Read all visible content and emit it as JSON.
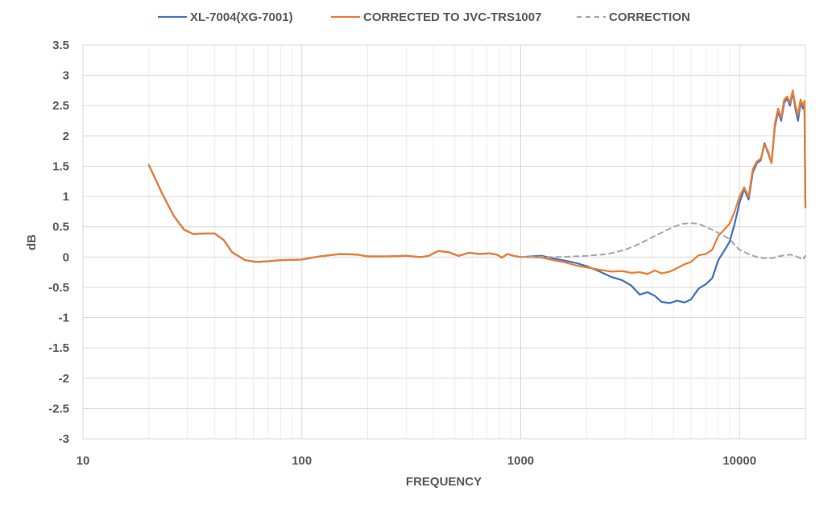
{
  "chart_data": {
    "type": "line",
    "title": "",
    "xlabel": "FREQUENCY",
    "ylabel": "dB",
    "xscale": "log",
    "xlim": [
      10,
      20000
    ],
    "ylim": [
      -3,
      3.5
    ],
    "x_ticks": [
      10,
      100,
      1000,
      10000
    ],
    "x_tick_labels": [
      "10",
      "100",
      "1000",
      "10000"
    ],
    "y_ticks": [
      3.5,
      3,
      2.5,
      2,
      1.5,
      1,
      0.5,
      0,
      -0.5,
      -1,
      -1.5,
      -2,
      -2.5,
      -3
    ],
    "y_tick_labels": [
      "3.5",
      "3",
      "2.5",
      "2",
      "1.5",
      "1",
      "0.5",
      "0",
      "-0.5",
      "-1",
      "-1.5",
      "-2",
      "-2.5",
      "-3"
    ],
    "grid": true,
    "legend_position": "top",
    "series": [
      {
        "name": "XL-7004(XG-7001)",
        "color": "#4472c4",
        "style": "solid",
        "points": [
          [
            20,
            1.52
          ],
          [
            23,
            1.05
          ],
          [
            26,
            0.68
          ],
          [
            29,
            0.45
          ],
          [
            32,
            0.38
          ],
          [
            36,
            0.39
          ],
          [
            40,
            0.39
          ],
          [
            44,
            0.28
          ],
          [
            48,
            0.08
          ],
          [
            55,
            -0.05
          ],
          [
            62,
            -0.08
          ],
          [
            70,
            -0.07
          ],
          [
            80,
            -0.05
          ],
          [
            100,
            -0.04
          ],
          [
            120,
            0.01
          ],
          [
            150,
            0.05
          ],
          [
            180,
            0.04
          ],
          [
            200,
            0.01
          ],
          [
            250,
            0.01
          ],
          [
            300,
            0.02
          ],
          [
            350,
            0.0
          ],
          [
            380,
            0.02
          ],
          [
            420,
            0.1
          ],
          [
            470,
            0.08
          ],
          [
            520,
            0.02
          ],
          [
            580,
            0.07
          ],
          [
            650,
            0.05
          ],
          [
            720,
            0.06
          ],
          [
            780,
            0.04
          ],
          [
            820,
            -0.01
          ],
          [
            870,
            0.05
          ],
          [
            930,
            0.02
          ],
          [
            1000,
            0.0
          ],
          [
            1100,
            0.01
          ],
          [
            1250,
            0.02
          ],
          [
            1400,
            -0.02
          ],
          [
            1600,
            -0.06
          ],
          [
            1800,
            -0.1
          ],
          [
            2000,
            -0.15
          ],
          [
            2300,
            -0.24
          ],
          [
            2600,
            -0.33
          ],
          [
            2900,
            -0.38
          ],
          [
            3200,
            -0.47
          ],
          [
            3500,
            -0.62
          ],
          [
            3800,
            -0.58
          ],
          [
            4100,
            -0.64
          ],
          [
            4400,
            -0.74
          ],
          [
            4800,
            -0.76
          ],
          [
            5200,
            -0.72
          ],
          [
            5600,
            -0.75
          ],
          [
            6000,
            -0.7
          ],
          [
            6500,
            -0.52
          ],
          [
            7000,
            -0.45
          ],
          [
            7500,
            -0.35
          ],
          [
            8000,
            -0.05
          ],
          [
            8500,
            0.1
          ],
          [
            9000,
            0.25
          ],
          [
            9500,
            0.55
          ],
          [
            10000,
            0.9
          ],
          [
            10500,
            1.12
          ],
          [
            11000,
            0.95
          ],
          [
            11500,
            1.4
          ],
          [
            12000,
            1.55
          ],
          [
            12500,
            1.6
          ],
          [
            13000,
            1.88
          ],
          [
            13500,
            1.72
          ],
          [
            14000,
            1.55
          ],
          [
            14500,
            2.15
          ],
          [
            15000,
            2.4
          ],
          [
            15500,
            2.25
          ],
          [
            16000,
            2.55
          ],
          [
            16500,
            2.62
          ],
          [
            17000,
            2.5
          ],
          [
            17500,
            2.72
          ],
          [
            18000,
            2.45
          ],
          [
            18500,
            2.25
          ],
          [
            19000,
            2.55
          ],
          [
            19500,
            2.45
          ],
          [
            19800,
            2.55
          ],
          [
            20000,
            0.82
          ]
        ]
      },
      {
        "name": "CORRECTED TO JVC-TRS1007",
        "color": "#ed7d31",
        "style": "solid",
        "points": [
          [
            20,
            1.52
          ],
          [
            23,
            1.05
          ],
          [
            26,
            0.68
          ],
          [
            29,
            0.45
          ],
          [
            32,
            0.38
          ],
          [
            36,
            0.39
          ],
          [
            40,
            0.39
          ],
          [
            44,
            0.28
          ],
          [
            48,
            0.08
          ],
          [
            55,
            -0.05
          ],
          [
            62,
            -0.08
          ],
          [
            70,
            -0.07
          ],
          [
            80,
            -0.05
          ],
          [
            100,
            -0.04
          ],
          [
            120,
            0.01
          ],
          [
            150,
            0.05
          ],
          [
            180,
            0.04
          ],
          [
            200,
            0.01
          ],
          [
            250,
            0.01
          ],
          [
            300,
            0.02
          ],
          [
            350,
            0.0
          ],
          [
            380,
            0.02
          ],
          [
            420,
            0.1
          ],
          [
            470,
            0.08
          ],
          [
            520,
            0.02
          ],
          [
            580,
            0.07
          ],
          [
            650,
            0.05
          ],
          [
            720,
            0.06
          ],
          [
            780,
            0.04
          ],
          [
            820,
            -0.01
          ],
          [
            870,
            0.05
          ],
          [
            930,
            0.02
          ],
          [
            1000,
            0.0
          ],
          [
            1100,
            0.0
          ],
          [
            1250,
            -0.01
          ],
          [
            1400,
            -0.05
          ],
          [
            1600,
            -0.09
          ],
          [
            1800,
            -0.14
          ],
          [
            2000,
            -0.17
          ],
          [
            2300,
            -0.21
          ],
          [
            2600,
            -0.24
          ],
          [
            2900,
            -0.23
          ],
          [
            3200,
            -0.26
          ],
          [
            3500,
            -0.25
          ],
          [
            3800,
            -0.28
          ],
          [
            4100,
            -0.22
          ],
          [
            4400,
            -0.27
          ],
          [
            4800,
            -0.24
          ],
          [
            5200,
            -0.18
          ],
          [
            5600,
            -0.12
          ],
          [
            6000,
            -0.08
          ],
          [
            6500,
            0.03
          ],
          [
            7000,
            0.05
          ],
          [
            7500,
            0.12
          ],
          [
            8000,
            0.35
          ],
          [
            8500,
            0.45
          ],
          [
            9000,
            0.55
          ],
          [
            9500,
            0.75
          ],
          [
            10000,
            1.0
          ],
          [
            10500,
            1.15
          ],
          [
            11000,
            1.0
          ],
          [
            11500,
            1.45
          ],
          [
            12000,
            1.58
          ],
          [
            12500,
            1.62
          ],
          [
            13000,
            1.85
          ],
          [
            13500,
            1.75
          ],
          [
            14000,
            1.55
          ],
          [
            14500,
            2.2
          ],
          [
            15000,
            2.45
          ],
          [
            15500,
            2.3
          ],
          [
            16000,
            2.6
          ],
          [
            16500,
            2.65
          ],
          [
            17000,
            2.55
          ],
          [
            17500,
            2.75
          ],
          [
            18000,
            2.5
          ],
          [
            18500,
            2.35
          ],
          [
            19000,
            2.6
          ],
          [
            19500,
            2.5
          ],
          [
            19800,
            2.58
          ],
          [
            20000,
            0.82
          ]
        ]
      },
      {
        "name": "CORRECTION",
        "color": "#a6a6a6",
        "style": "dashed",
        "points": [
          [
            1000,
            0.0
          ],
          [
            1500,
            0.0
          ],
          [
            2000,
            0.02
          ],
          [
            2500,
            0.05
          ],
          [
            3000,
            0.12
          ],
          [
            3500,
            0.22
          ],
          [
            4000,
            0.33
          ],
          [
            4500,
            0.42
          ],
          [
            5000,
            0.5
          ],
          [
            5500,
            0.55
          ],
          [
            6000,
            0.56
          ],
          [
            6500,
            0.55
          ],
          [
            7000,
            0.5
          ],
          [
            7500,
            0.45
          ],
          [
            8000,
            0.4
          ],
          [
            8500,
            0.35
          ],
          [
            9000,
            0.3
          ],
          [
            9500,
            0.2
          ],
          [
            10000,
            0.12
          ],
          [
            11000,
            0.05
          ],
          [
            12000,
            0.0
          ],
          [
            13000,
            -0.02
          ],
          [
            14000,
            -0.02
          ],
          [
            15000,
            0.01
          ],
          [
            16000,
            0.03
          ],
          [
            17000,
            0.04
          ],
          [
            18000,
            0.02
          ],
          [
            19000,
            -0.02
          ],
          [
            19500,
            -0.04
          ],
          [
            20000,
            0.02
          ]
        ]
      }
    ]
  }
}
